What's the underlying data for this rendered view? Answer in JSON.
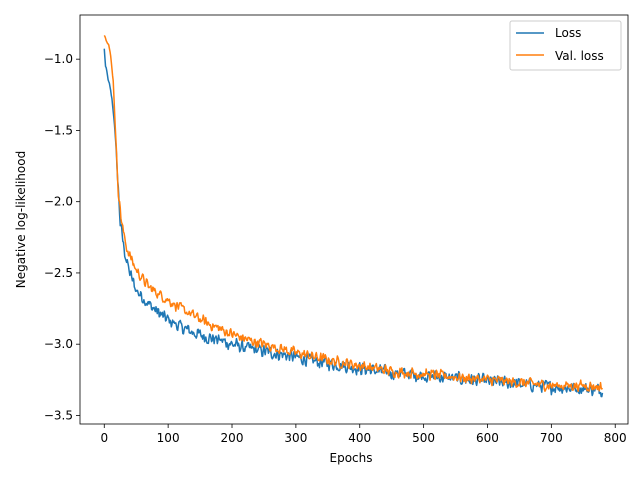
{
  "chart_data": {
    "type": "line",
    "title": "",
    "xlabel": "Epochs",
    "ylabel": "Negative log-likelihood",
    "xlim": [
      -38,
      820
    ],
    "ylim": [
      -3.56,
      -0.69
    ],
    "x_ticks": [
      0,
      100,
      200,
      300,
      400,
      500,
      600,
      700,
      800
    ],
    "y_ticks": [
      -1.0,
      -1.5,
      -2.0,
      -2.5,
      -3.0,
      -3.5
    ],
    "x_tick_labels": [
      "0",
      "100",
      "200",
      "300",
      "400",
      "500",
      "600",
      "700",
      "800"
    ],
    "y_tick_labels": [
      "−1.0",
      "−1.5",
      "−2.0",
      "−2.5",
      "−3.0",
      "−3.5"
    ],
    "grid": false,
    "legend_position": "top-right",
    "series": [
      {
        "name": "Loss",
        "color": "#1f77b4",
        "x": [
          0,
          2,
          5,
          8,
          12,
          16,
          20,
          25,
          30,
          35,
          40,
          45,
          50,
          60,
          70,
          80,
          90,
          100,
          120,
          140,
          160,
          180,
          200,
          225,
          250,
          275,
          300,
          330,
          360,
          400,
          450,
          500,
          550,
          600,
          650,
          700,
          750,
          780
        ],
        "y": [
          -0.93,
          -1.05,
          -1.12,
          -1.18,
          -1.28,
          -1.45,
          -1.75,
          -2.15,
          -2.3,
          -2.42,
          -2.5,
          -2.56,
          -2.62,
          -2.67,
          -2.72,
          -2.76,
          -2.8,
          -2.83,
          -2.88,
          -2.92,
          -2.95,
          -2.97,
          -3.0,
          -3.03,
          -3.05,
          -3.07,
          -3.09,
          -3.12,
          -3.14,
          -3.17,
          -3.2,
          -3.22,
          -3.24,
          -3.26,
          -3.28,
          -3.3,
          -3.31,
          -3.32
        ],
        "noise": 0.055,
        "noise_start": 0.02
      },
      {
        "name": "Val. loss",
        "color": "#ff7f0e",
        "x": [
          0,
          3,
          7,
          10,
          14,
          18,
          22,
          26,
          30,
          35,
          40,
          45,
          50,
          60,
          70,
          80,
          90,
          100,
          120,
          140,
          160,
          180,
          200,
          225,
          250,
          275,
          300,
          330,
          360,
          400,
          450,
          500,
          550,
          600,
          650,
          700,
          750,
          780
        ],
        "y": [
          -0.83,
          -0.86,
          -0.9,
          -0.98,
          -1.15,
          -1.55,
          -1.92,
          -2.1,
          -2.22,
          -2.32,
          -2.38,
          -2.43,
          -2.48,
          -2.54,
          -2.6,
          -2.63,
          -2.66,
          -2.69,
          -2.75,
          -2.8,
          -2.85,
          -2.89,
          -2.93,
          -2.97,
          -3.0,
          -3.03,
          -3.06,
          -3.09,
          -3.12,
          -3.15,
          -3.19,
          -3.21,
          -3.23,
          -3.25,
          -3.27,
          -3.29,
          -3.29,
          -3.3
        ],
        "noise": 0.045,
        "noise_start": 0.01
      }
    ]
  }
}
